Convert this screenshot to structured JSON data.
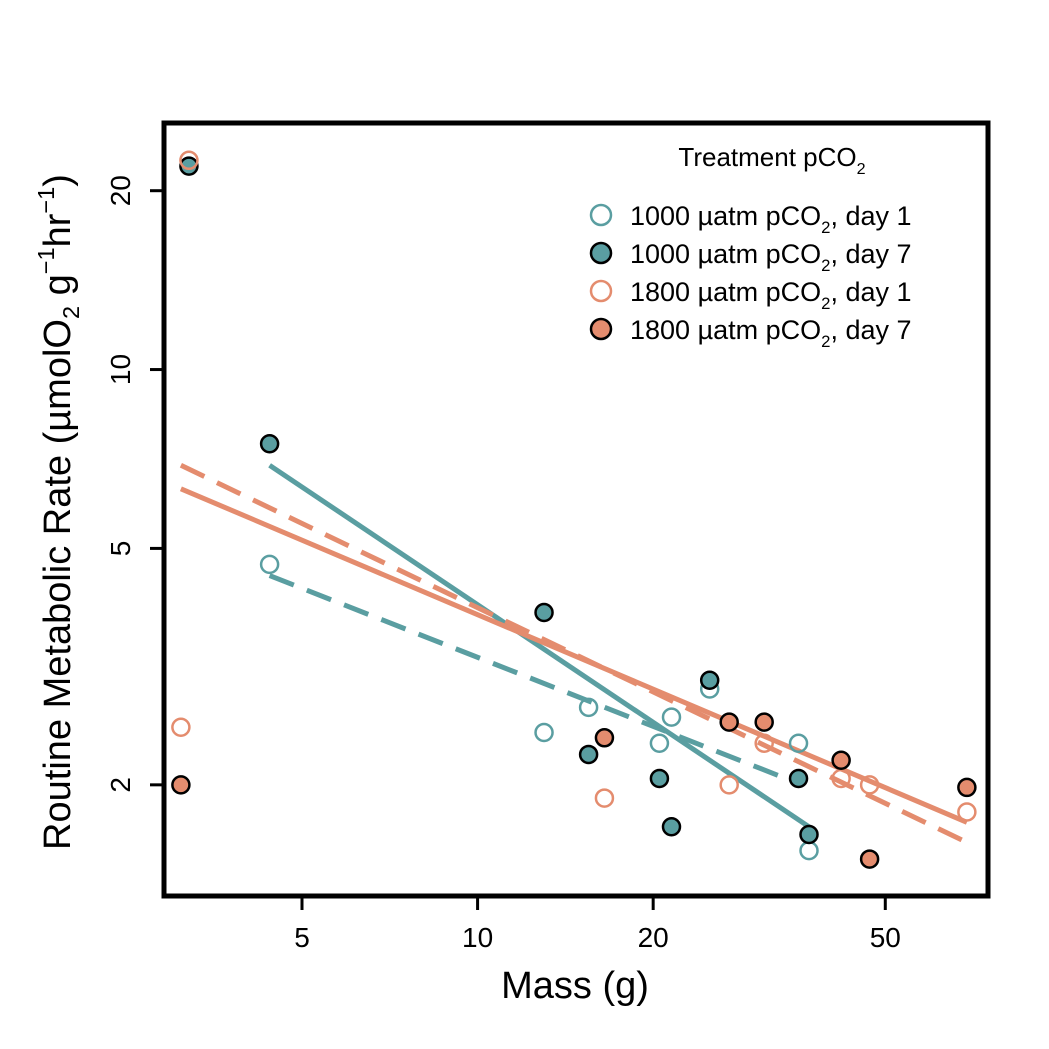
{
  "chart_data": {
    "type": "scatter",
    "log_x": true,
    "log_y": true,
    "xlabel": "Mass (g)",
    "ylabel": {
      "pre": "Routine Metabolic Rate (µmolO",
      "sub1": "2",
      "mid1": " g",
      "sup1": "−1",
      "mid2": "hr",
      "sup2": "−1",
      "post": ")"
    },
    "xlim": [
      2.9,
      75
    ],
    "ylim": [
      1.3,
      26
    ],
    "x_ticks": [
      {
        "value": 5,
        "label": "5"
      },
      {
        "value": 10,
        "label": "10"
      },
      {
        "value": 20,
        "label": "20"
      },
      {
        "value": 50,
        "label": "50"
      }
    ],
    "y_ticks": [
      {
        "value": 2,
        "label": "2"
      },
      {
        "value": 5,
        "label": "5"
      },
      {
        "value": 10,
        "label": "10"
      },
      {
        "value": 20,
        "label": "20"
      }
    ],
    "colors": {
      "teal": "#5a9ea1",
      "salmon": "#e48c6e"
    },
    "legend": {
      "position": "top-right",
      "title": {
        "main": "Treatment pCO",
        "sub": "2"
      }
    },
    "series": [
      {
        "name": "1000 µatm pCO₂, day 1",
        "label_pre": "1000 µatm pCO",
        "label_sub": "2",
        "label_post": ", day 1",
        "color": "#5a9ea1",
        "filled": false,
        "x": [
          4.4,
          13.0,
          15.5,
          20.5,
          21.5,
          25.0,
          35.5,
          37.0
        ],
        "y": [
          4.7,
          2.45,
          2.7,
          2.35,
          2.6,
          2.9,
          2.35,
          1.55
        ],
        "fit": {
          "x": [
            4.4,
            36.0
          ],
          "y": [
            4.5,
            2.0
          ],
          "dashed": true
        }
      },
      {
        "name": "1000 µatm pCO₂, day 7",
        "label_pre": "1000 µatm pCO",
        "label_sub": "2",
        "label_post": ", day 7",
        "color": "#5a9ea1",
        "filled": true,
        "x": [
          3.2,
          4.4,
          13.0,
          15.5,
          20.5,
          21.5,
          25.0,
          35.5,
          37.0
        ],
        "y": [
          22.0,
          7.5,
          3.9,
          2.25,
          2.05,
          1.7,
          3.0,
          2.05,
          1.65
        ],
        "fit": {
          "x": [
            4.4,
            37.0
          ],
          "y": [
            6.9,
            1.7
          ],
          "dashed": false
        }
      },
      {
        "name": "1800 µatm pCO₂, day 1",
        "label_pre": "1800 µatm pCO",
        "label_sub": "2",
        "label_post": ", day 1",
        "color": "#e48c6e",
        "filled": false,
        "x": [
          3.1,
          3.2,
          16.5,
          27.0,
          31.0,
          42.0,
          47.0,
          69.0
        ],
        "y": [
          2.5,
          22.5,
          1.9,
          2.0,
          2.35,
          2.05,
          2.0,
          1.8
        ],
        "fit": {
          "x": [
            3.1,
            69.0
          ],
          "y": [
            6.9,
            1.6
          ],
          "dashed": true
        }
      },
      {
        "name": "1800 µatm pCO₂, day 7",
        "label_pre": "1800 µatm pCO",
        "label_sub": "2",
        "label_post": ", day 7",
        "color": "#e48c6e",
        "filled": true,
        "x": [
          3.1,
          16.5,
          27.0,
          31.0,
          42.0,
          47.0,
          69.0
        ],
        "y": [
          2.0,
          2.4,
          2.55,
          2.55,
          2.2,
          1.5,
          1.98
        ],
        "fit": {
          "x": [
            3.1,
            69.0
          ],
          "y": [
            6.3,
            1.73
          ],
          "dashed": false
        }
      }
    ]
  }
}
